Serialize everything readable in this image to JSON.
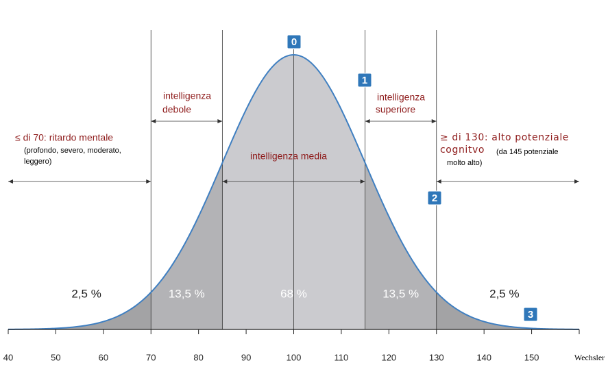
{
  "chart_data": {
    "type": "bell",
    "xlabel": "Wechsler",
    "xlim": [
      40,
      160
    ],
    "xticks": [
      40,
      50,
      60,
      70,
      80,
      90,
      100,
      110,
      120,
      130,
      140,
      150
    ],
    "boundaries": [
      70,
      85,
      100,
      115,
      130
    ],
    "values": [
      2.5,
      13.5,
      68,
      13.5,
      2.5
    ],
    "value_labels": [
      "2,5 %",
      "13,5 %",
      "68 %",
      "13,5 %",
      "2,5 %"
    ],
    "colors": [
      "#a3a3a5",
      "#b3b3b6",
      "#cbcbcf",
      "#b3b3b6",
      "#a3a3a5"
    ],
    "line_color": "#3f7fc1",
    "annotations": {
      "debole": [
        "intelligenza",
        "debole"
      ],
      "superiore": [
        "intelligenza",
        "superiore"
      ],
      "media": "intelligenza media",
      "left": [
        "≤ di 70: ritardo mentale",
        "(profondo, severo, moderato,",
        "leggero)"
      ],
      "right": [
        "≥ di 130: alto potenziale",
        "cognitvo",
        "(da 145 potenziale",
        "molto alto)"
      ]
    },
    "markers": [
      "0",
      "1",
      "2",
      "3"
    ]
  }
}
